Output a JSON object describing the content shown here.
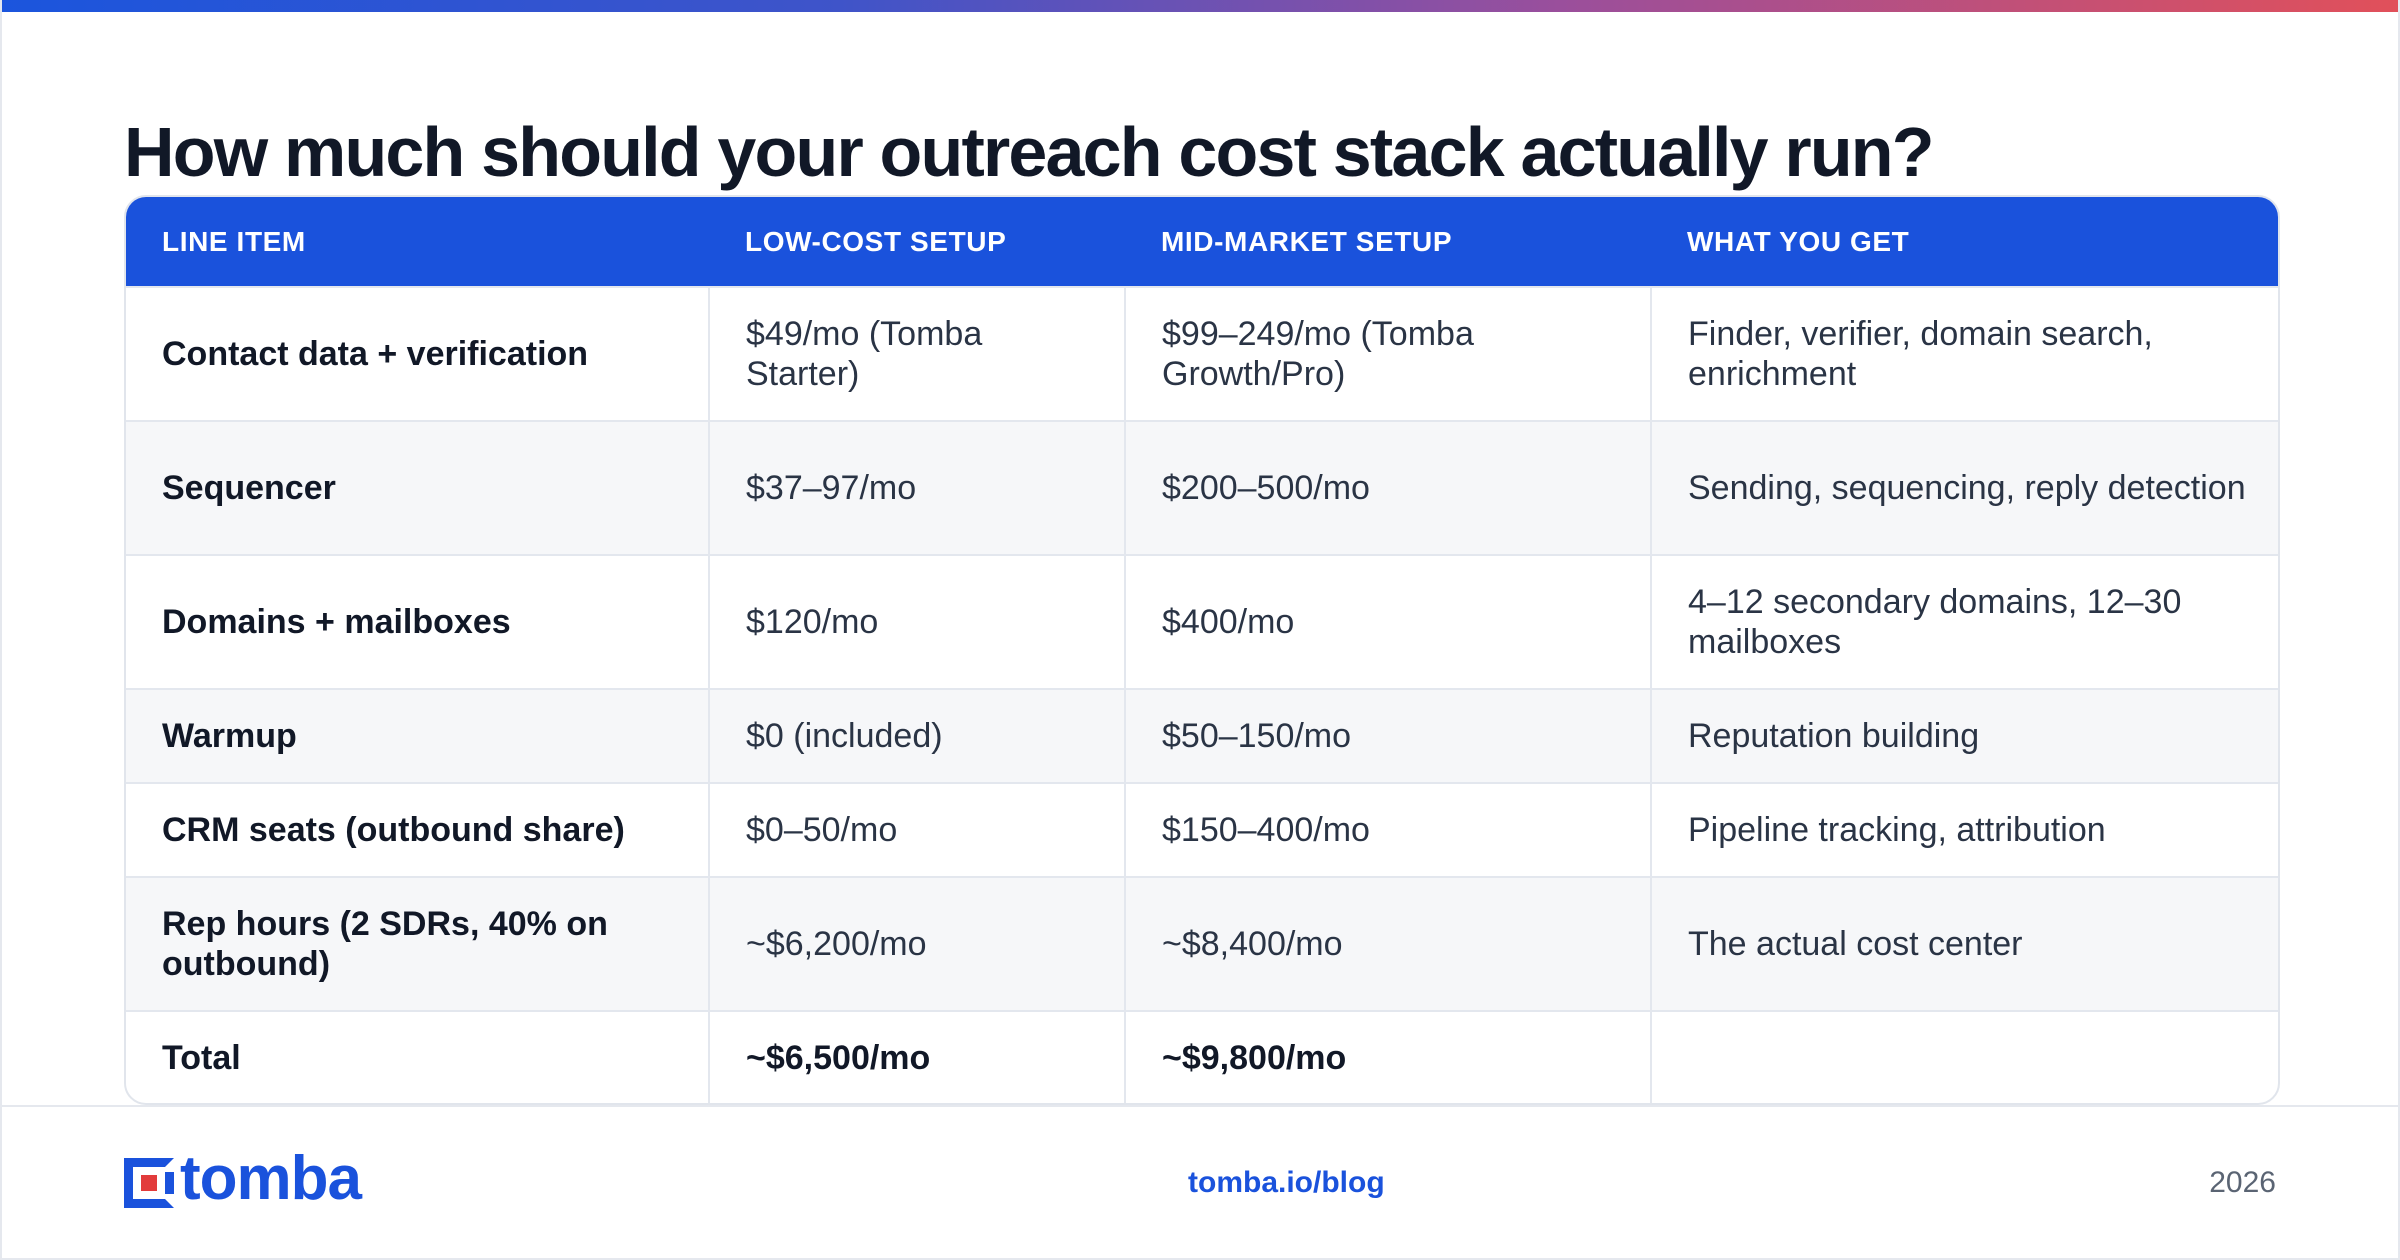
{
  "title": "How much should your outreach cost stack actually run?",
  "colors": {
    "accent": "#1a52dc",
    "logo_red": "#e23b3b"
  },
  "table": {
    "headers": [
      "LINE ITEM",
      "LOW-COST SETUP",
      "MID-MARKET SETUP",
      "WHAT YOU GET"
    ],
    "rows": [
      [
        "Contact data + verification",
        "$49/mo (Tomba Starter)",
        "$99–249/mo (Tomba Growth/Pro)",
        "Finder, verifier, domain search, enrichment"
      ],
      [
        "Sequencer",
        "$37–97/mo",
        "$200–500/mo",
        "Sending, sequencing, reply detection"
      ],
      [
        "Domains + mailboxes",
        "$120/mo",
        "$400/mo",
        "4–12 secondary domains, 12–30 mailboxes"
      ],
      [
        "Warmup",
        "$0 (included)",
        "$50–150/mo",
        "Reputation building"
      ],
      [
        "CRM seats (outbound share)",
        "$0–50/mo",
        "$150–400/mo",
        "Pipeline tracking, attribution"
      ],
      [
        "Rep hours (2 SDRs, 40% on outbound)",
        "~$6,200/mo",
        "~$8,400/mo",
        "The actual cost center"
      ],
      [
        "Total",
        "~$6,500/mo",
        "~$9,800/mo",
        ""
      ]
    ]
  },
  "footer": {
    "logo_text": "tomba",
    "link": "tomba.io/blog",
    "year": "2026"
  }
}
